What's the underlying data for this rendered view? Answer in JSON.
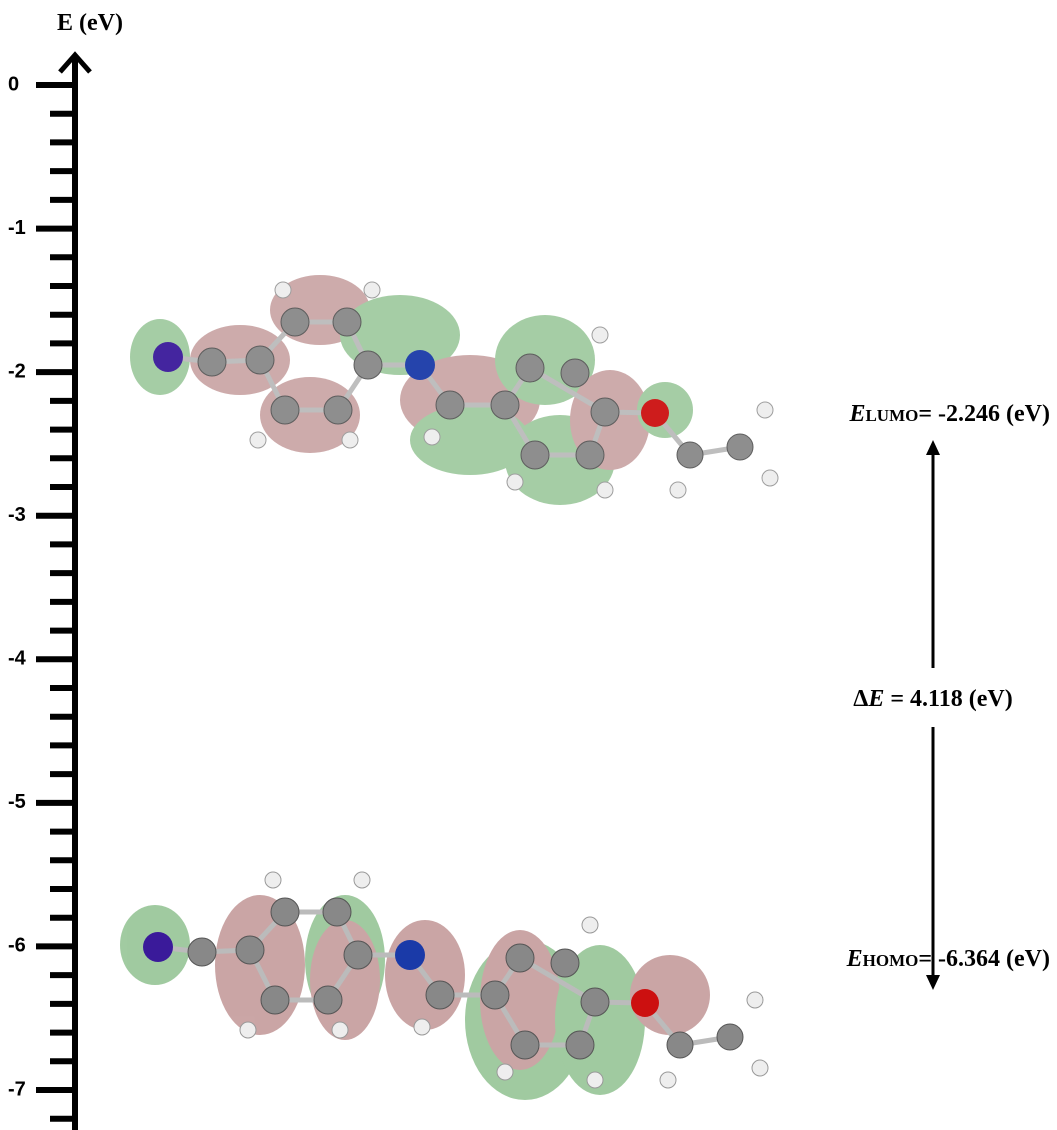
{
  "axis": {
    "label": "E (eV)",
    "ticks": [
      0,
      -1,
      -2,
      -3,
      -4,
      -5,
      -6,
      -7
    ]
  },
  "lumo": {
    "symbol": "E",
    "subscript": "LUMO",
    "text": "= -2.246 (eV)"
  },
  "homo": {
    "symbol": "E",
    "subscript": "HOMO",
    "text": "= -6.364 (eV)"
  },
  "gap": {
    "delta": "Δ",
    "symbol": "E",
    "text": "= 4.118 (eV)"
  }
}
